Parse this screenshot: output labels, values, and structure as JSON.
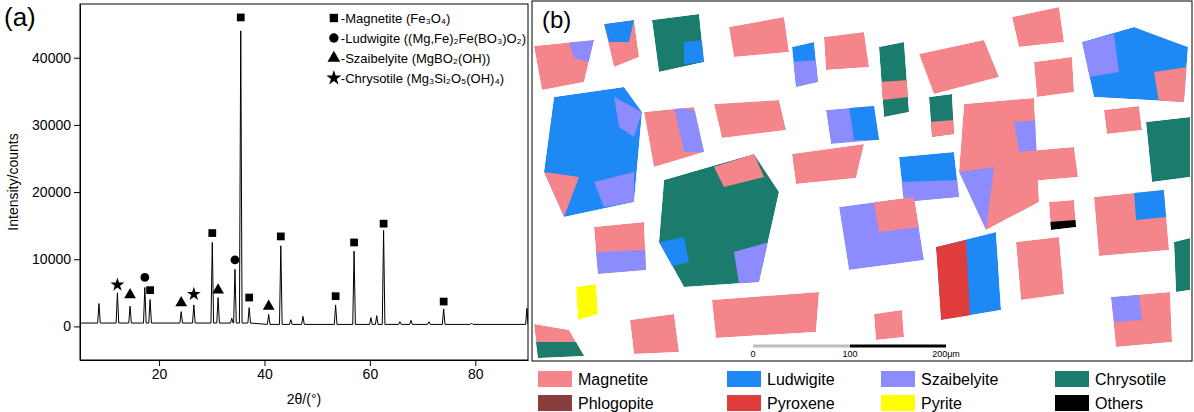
{
  "chart_data": {
    "type": "line",
    "panel_label": "(a)",
    "x_label": "2θ/(°)",
    "y_label": "Intensity/counts",
    "color": "#000000",
    "x": [
      5,
      8.35,
      8.6,
      8.85,
      11.85,
      12.1,
      12.35,
      14.25,
      14.5,
      14.75,
      17.05,
      17.3,
      17.55,
      18.05,
      18.3,
      18.55,
      23.95,
      24.2,
      24.45,
      26.35,
      26.6,
      26.85,
      29.85,
      30.1,
      30.35,
      30.95,
      31.2,
      31.45,
      33.55,
      33.8,
      34.05,
      34.15,
      34.4,
      34.65,
      35.25,
      35.5,
      35.75,
      36.85,
      37.1,
      37.35,
      40.55,
      40.8,
      41.05,
      42.85,
      43.1,
      43.35,
      44.75,
      45,
      45.25,
      47.05,
      47.3,
      47.55,
      53.25,
      53.5,
      53.75,
      56.75,
      57,
      57.25,
      59.95,
      60.2,
      60.45,
      61.05,
      61.3,
      61.55,
      62.35,
      62.6,
      62.85,
      65.45,
      65.7,
      65.95,
      67.55,
      67.8,
      68.05,
      70.95,
      71.2,
      71.45,
      73.75,
      74,
      74.25,
      79.05,
      79.3,
      79.55,
      89.55,
      89.8,
      90
    ],
    "values": [
      500,
      500,
      3400,
      500,
      500,
      5000,
      500,
      500,
      3000,
      500,
      500,
      5800,
      500,
      500,
      4000,
      500,
      500,
      2200,
      500,
      500,
      3200,
      500,
      500,
      12500,
      500,
      500,
      4300,
      500,
      500,
      1200,
      500,
      500,
      8500,
      500,
      500,
      44000,
      500,
      500,
      2800,
      500,
      300,
      1800,
      300,
      300,
      12000,
      300,
      300,
      1000,
      300,
      300,
      1500,
      300,
      300,
      3200,
      300,
      300,
      11200,
      300,
      300,
      1300,
      300,
      300,
      1600,
      300,
      300,
      14300,
      300,
      300,
      700,
      300,
      300,
      900,
      300,
      300,
      700,
      300,
      300,
      2600,
      300,
      300,
      500,
      300,
      300,
      2700,
      300
    ],
    "xlim": [
      5,
      90
    ],
    "xticks": [
      20,
      40,
      60,
      80
    ],
    "ylim": [
      -5000,
      48000
    ],
    "yticks": [
      0,
      10000,
      20000,
      30000,
      40000
    ],
    "grid": false,
    "legend": "upper right",
    "phases": [
      {
        "name": "-Magnetite (Fe₃O₄)",
        "marker": "square",
        "color": "#000000",
        "x": [
          18.3,
          30.1,
          35.5,
          37.1,
          43.1,
          53.5,
          57.0,
          62.6,
          74.0
        ],
        "y": [
          5400,
          13900,
          46000,
          4300,
          13400,
          4500,
          12500,
          15300,
          3700
        ]
      },
      {
        "name": "-Ludwigite ((Mg,Fe)₂Fe(BO₃)O₂)",
        "marker": "circle",
        "color": "#000000",
        "x": [
          17.3,
          34.4
        ],
        "y": [
          7300,
          9900
        ]
      },
      {
        "name": "-Szaibelyite (MgBO₂(OH))",
        "marker": "triangle",
        "color": "#000000",
        "x": [
          14.5,
          24.2,
          31.2,
          40.8
        ],
        "y": [
          4700,
          3500,
          5400,
          3000
        ]
      },
      {
        "name": "-Chrysotile (Mg₃Si₂O₅(OH)₄)",
        "marker": "star",
        "color": "#000000",
        "x": [
          12.1,
          26.6
        ],
        "y": [
          6200,
          4800
        ]
      }
    ]
  },
  "phase_map": {
    "panel_label": "(b)",
    "legend": [
      {
        "name": "Magnetite",
        "color": "#f4858a"
      },
      {
        "name": "Ludwigite",
        "color": "#1e88f5"
      },
      {
        "name": "Szaibelyite",
        "color": "#8c8cff"
      },
      {
        "name": "Chrysotile",
        "color": "#1b7b6c"
      },
      {
        "name": "Phlogopite",
        "color": "#8b3c3c"
      },
      {
        "name": "Pyroxene",
        "color": "#e03c3c"
      },
      {
        "name": "Pyrite",
        "color": "#ffff00"
      },
      {
        "name": "Others",
        "color": "#000000"
      }
    ],
    "scale_bar": {
      "labels": [
        "0",
        "100",
        "200μm"
      ]
    }
  }
}
